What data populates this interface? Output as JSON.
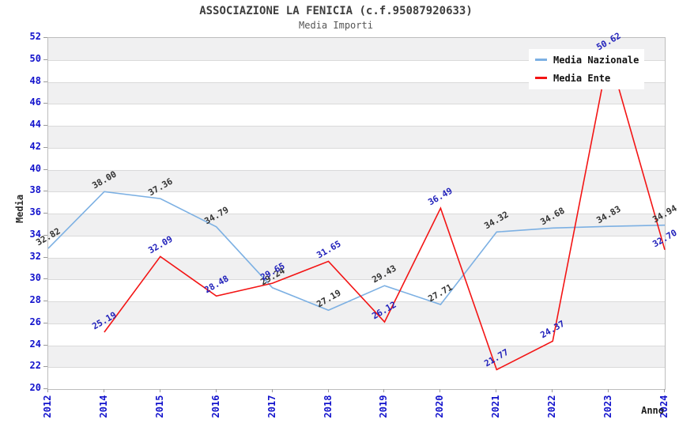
{
  "chart": {
    "title": "ASSOCIAZIONE LA FENICIA (c.f.95087920633)",
    "subtitle": "Media Importi",
    "ylabel": "Media",
    "xlabel": "Anno"
  },
  "chart_data": {
    "type": "line",
    "title": "ASSOCIAZIONE LA FENICIA (c.f.95087920633)",
    "subtitle": "Media Importi",
    "xlabel": "Anno",
    "ylabel": "Media",
    "ylim": [
      20,
      52
    ],
    "ytick_step": 2,
    "grid": "alternating-horizontal-bands",
    "legend_position": "top-right-inside",
    "categories": [
      "2012",
      "2014",
      "2015",
      "2016",
      "2017",
      "2018",
      "2019",
      "2020",
      "2021",
      "2022",
      "2023",
      "2024"
    ],
    "series": [
      {
        "name": "Media Nazionale",
        "color": "#7cb0e3",
        "label_color": "#333333",
        "values": [
          32.82,
          38.0,
          37.36,
          34.79,
          29.24,
          27.19,
          29.43,
          27.71,
          34.32,
          34.68,
          34.83,
          34.94
        ]
      },
      {
        "name": "Media Ente",
        "color": "#f31414",
        "label_color": "#2222bb",
        "values": [
          null,
          25.19,
          32.09,
          28.48,
          29.65,
          31.65,
          26.12,
          36.49,
          21.77,
          24.37,
          50.62,
          32.7
        ]
      }
    ],
    "colors": {
      "tick_label": "#1212cc",
      "band_fill": "#f0f0f1",
      "plot_border": "#bdbdbd",
      "title_text": "#3d3d3d"
    }
  }
}
